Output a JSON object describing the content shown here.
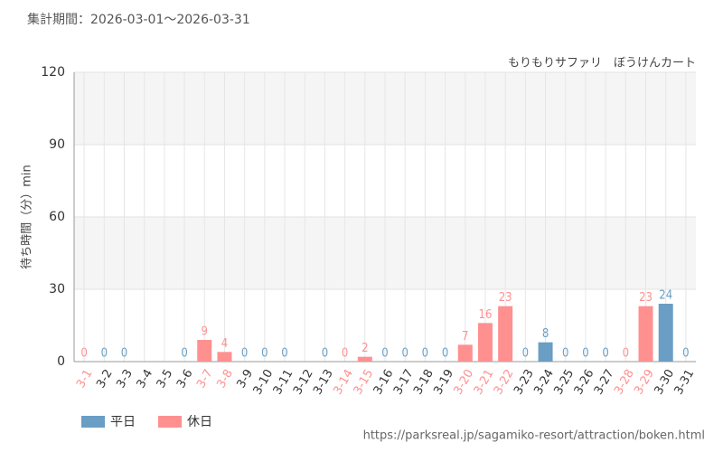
{
  "chart_data": {
    "type": "bar",
    "title": "集計期間：2026-03-01～2026-03-31",
    "subtitle": "もりもりサファリ　ぼうけんカート",
    "ylabel": "待ち時間（分）min",
    "source": "https://parksreal.jp/sagamiko-resort/attraction/boken.html",
    "categories": [
      "3-1",
      "3-2",
      "3-3",
      "3-4",
      "3-5",
      "3-6",
      "3-7",
      "3-8",
      "3-9",
      "3-10",
      "3-11",
      "3-12",
      "3-13",
      "3-14",
      "3-15",
      "3-16",
      "3-17",
      "3-18",
      "3-19",
      "3-20",
      "3-21",
      "3-22",
      "3-23",
      "3-24",
      "3-25",
      "3-26",
      "3-27",
      "3-28",
      "3-29",
      "3-30",
      "3-31"
    ],
    "series": [
      {
        "name": "平日",
        "color": "#6a9ec5",
        "values": [
          null,
          0,
          0,
          null,
          null,
          0,
          null,
          null,
          0,
          0,
          0,
          null,
          0,
          null,
          null,
          0,
          0,
          0,
          0,
          null,
          null,
          null,
          0,
          8,
          0,
          0,
          0,
          null,
          null,
          24,
          0
        ]
      },
      {
        "name": "休日",
        "color": "#ff9090",
        "values": [
          0,
          null,
          null,
          null,
          null,
          null,
          9,
          4,
          null,
          null,
          null,
          null,
          null,
          0,
          2,
          null,
          null,
          null,
          null,
          7,
          16,
          23,
          null,
          null,
          null,
          null,
          null,
          0,
          23,
          null,
          null
        ]
      }
    ],
    "ylim": [
      0,
      120
    ],
    "yticks": [
      0,
      30,
      60,
      90,
      120
    ],
    "grid": true,
    "legend": "bottom-left"
  }
}
